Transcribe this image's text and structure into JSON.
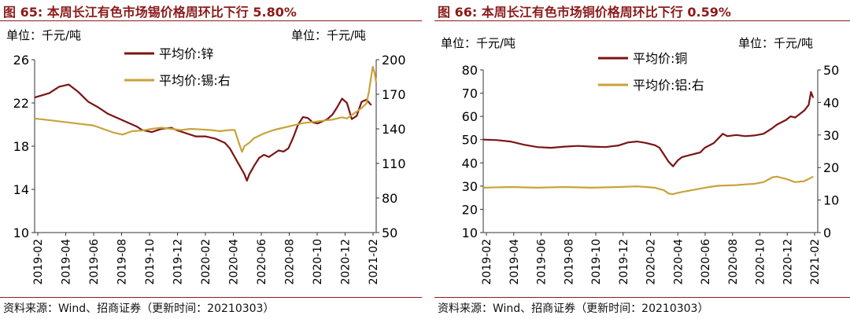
{
  "charts": [
    {
      "title": "图 65:  本周长江有色市场锡价格周环比下行 5.80%",
      "source": "资料来源：Wind、招商证券（更新时间：20210303）"
    },
    {
      "title": "图 66:  本周长江有色市场铜价格周环比下行 0.59%",
      "source": "资料来源：Wind、招商证券（更新时间：20210303）"
    }
  ],
  "chart_data": [
    {
      "type": "line",
      "left_unit": "单位：千元/吨",
      "right_unit": "单位：千元/吨",
      "x_ticks": [
        "2019-02",
        "2019-04",
        "2019-06",
        "2019-08",
        "2019-10",
        "2019-12",
        "2020-02",
        "2020-04",
        "2020-06",
        "2020-08",
        "2020-10",
        "2020-12",
        "2021-02"
      ],
      "y_left": {
        "min": 10,
        "max": 26,
        "ticks": [
          10,
          14,
          18,
          22,
          26
        ]
      },
      "y_right": {
        "min": 50,
        "max": 200,
        "ticks": [
          50,
          80,
          110,
          140,
          170,
          200
        ]
      },
      "grid": false,
      "legend": "top-center",
      "series": [
        {
          "name": "平均价:锌",
          "axis": "left",
          "color": "#7b1416",
          "points": [
            [
              0,
              22.5
            ],
            [
              3,
              22.9
            ],
            [
              5,
              23.5
            ],
            [
              7,
              23.7
            ],
            [
              9,
              23.0
            ],
            [
              11,
              22.1
            ],
            [
              13,
              21.6
            ],
            [
              15,
              21.0
            ],
            [
              17,
              20.6
            ],
            [
              19,
              20.2
            ],
            [
              21,
              19.8
            ],
            [
              22,
              19.5
            ],
            [
              24,
              19.3
            ],
            [
              26,
              19.6
            ],
            [
              28,
              19.7
            ],
            [
              29,
              19.5
            ],
            [
              31,
              19.2
            ],
            [
              33,
              18.9
            ],
            [
              35,
              18.9
            ],
            [
              37,
              18.7
            ],
            [
              39,
              18.3
            ],
            [
              40,
              17.8
            ],
            [
              41,
              17.0
            ],
            [
              42,
              16.2
            ],
            [
              43,
              15.4
            ],
            [
              43.5,
              14.8
            ],
            [
              44,
              15.4
            ],
            [
              45,
              16.2
            ],
            [
              46,
              16.9
            ],
            [
              47,
              17.2
            ],
            [
              48,
              17.0
            ],
            [
              49,
              17.3
            ],
            [
              50,
              17.6
            ],
            [
              51,
              17.5
            ],
            [
              52,
              17.8
            ],
            [
              53,
              18.8
            ],
            [
              54,
              20.0
            ],
            [
              55,
              20.7
            ],
            [
              56,
              20.6
            ],
            [
              57,
              20.2
            ],
            [
              58,
              20.1
            ],
            [
              59,
              20.3
            ],
            [
              60,
              20.5
            ],
            [
              61,
              20.9
            ],
            [
              62,
              21.6
            ],
            [
              63,
              22.4
            ],
            [
              64,
              22.0
            ],
            [
              65,
              20.5
            ],
            [
              66,
              20.8
            ],
            [
              67,
              22.1
            ],
            [
              68,
              22.3
            ],
            [
              69,
              21.8
            ]
          ]
        },
        {
          "name": "平均价:锡:右",
          "axis": "right",
          "color": "#c9a33a",
          "points": [
            [
              0,
              149
            ],
            [
              4,
              147
            ],
            [
              8,
              145
            ],
            [
              12,
              143
            ],
            [
              14,
              140
            ],
            [
              16,
              137
            ],
            [
              18,
              135
            ],
            [
              20,
              138
            ],
            [
              22,
              138.5
            ],
            [
              24,
              140
            ],
            [
              26,
              141
            ],
            [
              28,
              140
            ],
            [
              30,
              139
            ],
            [
              32,
              140
            ],
            [
              34,
              139.5
            ],
            [
              36,
              139
            ],
            [
              38,
              138
            ],
            [
              40,
              139
            ],
            [
              41,
              139
            ],
            [
              42,
              126
            ],
            [
              42.5,
              120
            ],
            [
              43,
              125
            ],
            [
              44,
              128
            ],
            [
              45,
              132
            ],
            [
              47,
              136
            ],
            [
              49,
              139
            ],
            [
              51,
              141
            ],
            [
              53,
              143
            ],
            [
              55,
              145
            ],
            [
              57,
              146
            ],
            [
              59,
              147
            ],
            [
              61,
              148
            ],
            [
              63,
              150
            ],
            [
              64,
              149
            ],
            [
              65,
              152
            ],
            [
              66,
              155
            ],
            [
              67,
              158
            ],
            [
              68,
              162
            ],
            [
              68.5,
              172
            ],
            [
              69,
              186
            ],
            [
              69.3,
              194
            ],
            [
              69.7,
              188
            ],
            [
              70,
              180
            ]
          ]
        }
      ]
    },
    {
      "type": "line",
      "left_unit": "单位：千元/吨",
      "right_unit": "单位：千元/吨",
      "x_ticks": [
        "2019-02",
        "2019-04",
        "2019-06",
        "2019-08",
        "2019-10",
        "2019-12",
        "2020-02",
        "2020-04",
        "2020-06",
        "2020-08",
        "2020-10",
        "2020-12",
        "2021-02"
      ],
      "y_left": {
        "min": 10,
        "max": 80,
        "ticks": [
          10,
          20,
          30,
          40,
          50,
          60,
          70,
          80
        ]
      },
      "y_right": {
        "min": 0,
        "max": 50,
        "ticks": [
          0,
          10,
          20,
          30,
          40,
          50
        ]
      },
      "grid": false,
      "legend": "top-center",
      "series": [
        {
          "name": "平均价:铜",
          "axis": "left",
          "color": "#7b1416",
          "points": [
            [
              0,
              50
            ],
            [
              3,
              49.8
            ],
            [
              6,
              49.2
            ],
            [
              9,
              47.8
            ],
            [
              12,
              46.8
            ],
            [
              15,
              46.5
            ],
            [
              18,
              47.0
            ],
            [
              21,
              47.3
            ],
            [
              24,
              47.0
            ],
            [
              27,
              46.8
            ],
            [
              30,
              47.5
            ],
            [
              32,
              48.8
            ],
            [
              34,
              49.2
            ],
            [
              36,
              48.6
            ],
            [
              38,
              47.6
            ],
            [
              39,
              46.5
            ],
            [
              40,
              43.5
            ],
            [
              41,
              40.5
            ],
            [
              42,
              38.5
            ],
            [
              43,
              41.0
            ],
            [
              44,
              42.5
            ],
            [
              46,
              43.5
            ],
            [
              48,
              44.5
            ],
            [
              49,
              46.5
            ],
            [
              51,
              48.5
            ],
            [
              52,
              50.5
            ],
            [
              53,
              52.5
            ],
            [
              54,
              51.5
            ],
            [
              56,
              52.0
            ],
            [
              58,
              51.5
            ],
            [
              60,
              51.8
            ],
            [
              62,
              52.5
            ],
            [
              64,
              55.0
            ],
            [
              65,
              56.5
            ],
            [
              67,
              58.5
            ],
            [
              68,
              60.0
            ],
            [
              69,
              59.5
            ],
            [
              70,
              61.0
            ],
            [
              71,
              62.5
            ],
            [
              72,
              65.0
            ],
            [
              72.5,
              70.5
            ],
            [
              73,
              68.0
            ]
          ]
        },
        {
          "name": "平均价:铝:右",
          "axis": "right",
          "color": "#c9a33a",
          "points": [
            [
              0,
              13.8
            ],
            [
              6,
              14.0
            ],
            [
              12,
              13.8
            ],
            [
              18,
              14.0
            ],
            [
              24,
              13.8
            ],
            [
              30,
              14.0
            ],
            [
              34,
              14.2
            ],
            [
              38,
              13.8
            ],
            [
              40,
              13.0
            ],
            [
              41,
              12.0
            ],
            [
              42,
              11.8
            ],
            [
              43,
              12.2
            ],
            [
              44,
              12.5
            ],
            [
              46,
              13.0
            ],
            [
              48,
              13.5
            ],
            [
              50,
              14.0
            ],
            [
              52,
              14.4
            ],
            [
              54,
              14.5
            ],
            [
              56,
              14.6
            ],
            [
              58,
              14.8
            ],
            [
              60,
              15.0
            ],
            [
              62,
              15.5
            ],
            [
              64,
              17.0
            ],
            [
              65,
              17.2
            ],
            [
              67,
              16.5
            ],
            [
              69,
              15.5
            ],
            [
              71,
              15.8
            ],
            [
              72,
              16.5
            ],
            [
              73,
              17.2
            ]
          ]
        }
      ]
    }
  ]
}
